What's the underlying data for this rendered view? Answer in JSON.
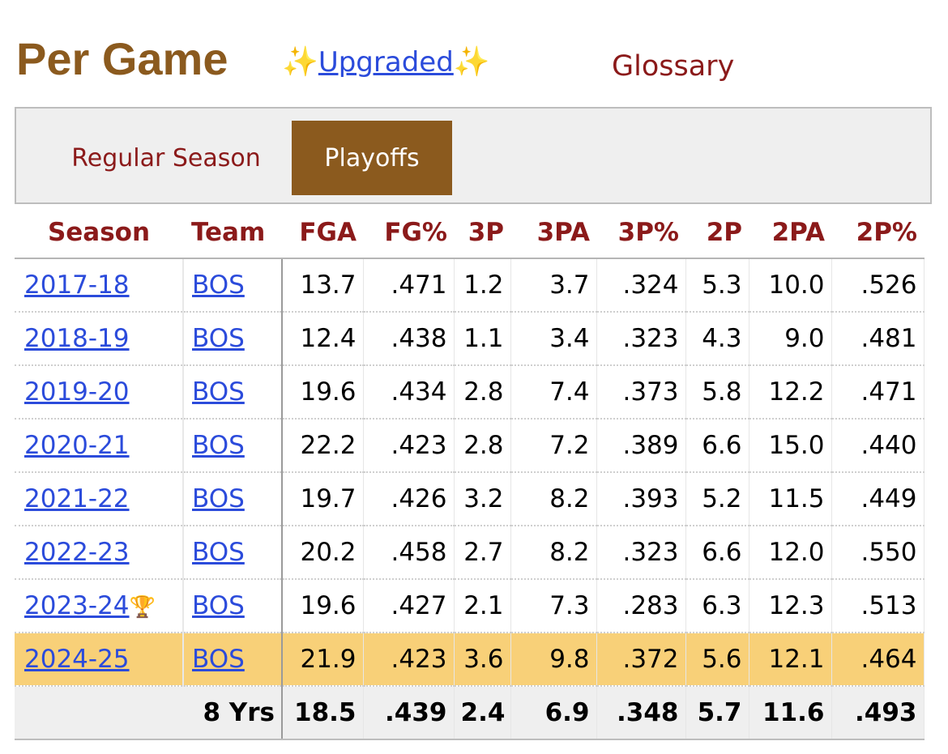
{
  "header": {
    "title": "Per Game",
    "upgraded": {
      "prefix_icon": "sparkles-icon",
      "label": "Upgraded",
      "suffix_icon": "sparkles-icon",
      "sparkle_glyph": "✨"
    },
    "glossary_label": "Glossary"
  },
  "tabs": [
    {
      "label": "Regular Season",
      "active": false
    },
    {
      "label": "Playoffs",
      "active": true
    }
  ],
  "table": {
    "columns": [
      "Season",
      "Team",
      "FGA",
      "FG%",
      "3P",
      "3PA",
      "3P%",
      "2P",
      "2PA",
      "2P%"
    ],
    "rows": [
      {
        "season": "2017-18",
        "team": "BOS",
        "values": [
          "13.7",
          ".471",
          "1.2",
          "3.7",
          ".324",
          "5.3",
          "10.0",
          ".526"
        ]
      },
      {
        "season": "2018-19",
        "team": "BOS",
        "values": [
          "12.4",
          ".438",
          "1.1",
          "3.4",
          ".323",
          "4.3",
          "9.0",
          ".481"
        ]
      },
      {
        "season": "2019-20",
        "team": "BOS",
        "values": [
          "19.6",
          ".434",
          "2.8",
          "7.4",
          ".373",
          "5.8",
          "12.2",
          ".471"
        ]
      },
      {
        "season": "2020-21",
        "team": "BOS",
        "values": [
          "22.2",
          ".423",
          "2.8",
          "7.2",
          ".389",
          "6.6",
          "15.0",
          ".440"
        ]
      },
      {
        "season": "2021-22",
        "team": "BOS",
        "values": [
          "19.7",
          ".426",
          "3.2",
          "8.2",
          ".393",
          "5.2",
          "11.5",
          ".449"
        ]
      },
      {
        "season": "2022-23",
        "team": "BOS",
        "values": [
          "20.2",
          ".458",
          "2.7",
          "8.2",
          ".323",
          "6.6",
          "12.0",
          ".550"
        ]
      },
      {
        "season": "2023-24",
        "team": "BOS",
        "champion_icon": "trophy-icon",
        "trophy_glyph": "🏆",
        "values": [
          "19.6",
          ".427",
          "2.1",
          "7.3",
          ".283",
          "6.3",
          "12.3",
          ".513"
        ]
      },
      {
        "season": "2024-25",
        "team": "BOS",
        "highlight": true,
        "values": [
          "21.9",
          ".423",
          "3.6",
          "9.8",
          ".372",
          "5.6",
          "12.1",
          ".464"
        ]
      }
    ],
    "total": {
      "label": "8 Yrs",
      "values": [
        "18.5",
        ".439",
        "2.4",
        "6.9",
        ".348",
        "5.7",
        "11.6",
        ".493"
      ]
    }
  },
  "colors": {
    "title": "#8b5a1e",
    "header_text": "#8b1a1a",
    "link": "#2b4bdb",
    "active_tab": "#8b5a1e",
    "highlight_row": "#f8d078",
    "total_row": "#efefef"
  }
}
